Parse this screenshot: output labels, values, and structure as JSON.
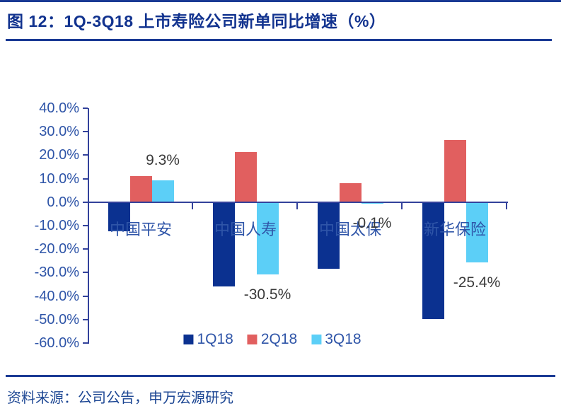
{
  "header": {
    "title": "图 12：1Q-3Q18 上市寿险公司新单同比增速（%）"
  },
  "chart_data": {
    "type": "bar",
    "categories": [
      "中国平安",
      "中国人寿",
      "中国太保",
      "新华保险"
    ],
    "series": [
      {
        "name": "1Q18",
        "color": "#0B3190",
        "values": [
          -12.0,
          -35.5,
          -28.0,
          -49.5
        ]
      },
      {
        "name": "2Q18",
        "color": "#E15F5F",
        "values": [
          11.0,
          21.5,
          8.0,
          26.5
        ]
      },
      {
        "name": "3Q18",
        "color": "#5CCFF7",
        "values": [
          9.3,
          -30.5,
          -0.1,
          -25.4
        ]
      }
    ],
    "value_labels": [
      {
        "category_index": 0,
        "series_index": 2,
        "text": "9.3%"
      },
      {
        "category_index": 1,
        "series_index": 2,
        "text": "-30.5%"
      },
      {
        "category_index": 2,
        "series_index": 2,
        "text": "-0.1%"
      },
      {
        "category_index": 3,
        "series_index": 2,
        "text": "-25.4%"
      }
    ],
    "y_axis": {
      "min": -60,
      "max": 40,
      "step": 10,
      "tick_labels": [
        "40.0%",
        "30.0%",
        "20.0%",
        "10.0%",
        "0.0%",
        "-10.0%",
        "-20.0%",
        "-30.0%",
        "-40.0%",
        "-50.0%",
        "-60.0%"
      ]
    },
    "legend_position": "bottom",
    "grid": false
  },
  "colors": {
    "accent_rule": "#1A3A94",
    "title_text": "#12338F",
    "axis_line": "#33429B",
    "axis_text": "#2F55A8",
    "value_label_text": "#3A3A3A",
    "source_text": "#1C4693"
  },
  "footer": {
    "source": "资料来源：公司公告，申万宏源研究"
  }
}
